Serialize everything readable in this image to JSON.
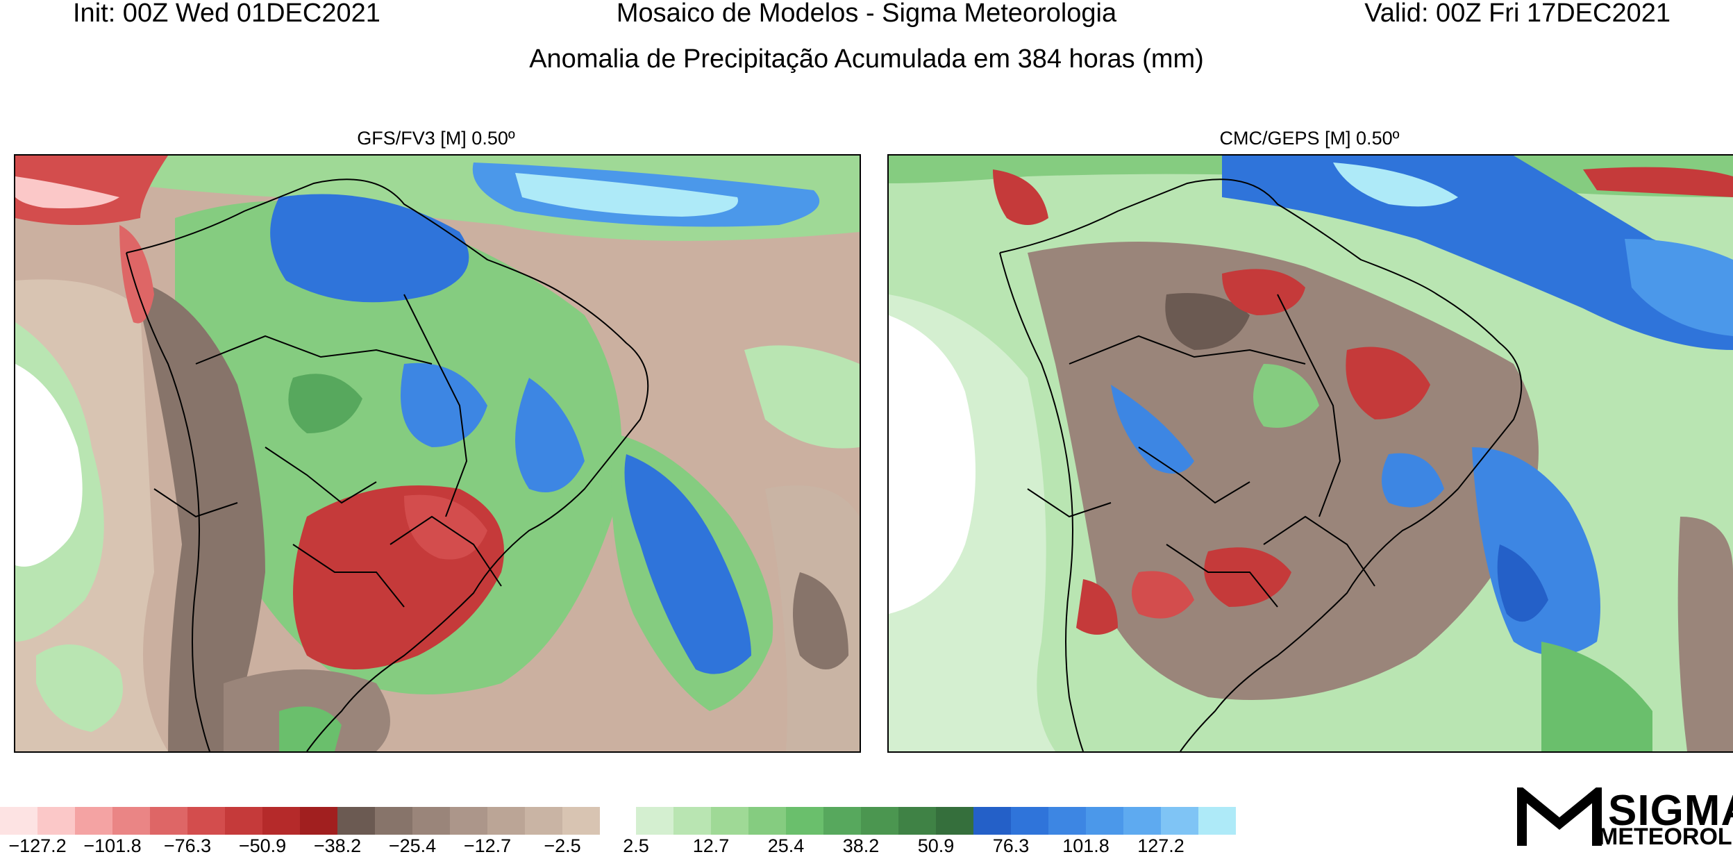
{
  "header": {
    "init": "Init: 00Z Wed 01DEC2021",
    "mosaic": "Mosaico de Modelos - Sigma Meteorologia",
    "valid": "Valid: 00Z Fri 17DEC2021",
    "subtitle": "Anomalia de Precipitação Acumulada em 384 horas (mm)"
  },
  "panels": [
    {
      "title": "GFS/FV3 [M] 0.50º"
    },
    {
      "title": "CMC/GEPS [M] 0.50º"
    }
  ],
  "colorbar": {
    "negative_colors": [
      "#fde3e3",
      "#fbc8c8",
      "#f4a3a3",
      "#ea8585",
      "#de6666",
      "#d34d4d",
      "#c53a3a",
      "#b52a2a",
      "#a11f1f",
      "#6b5a52",
      "#87746a",
      "#9a857a",
      "#ac968a",
      "#bba596",
      "#c9b4a4",
      "#d8c4b2"
    ],
    "positive_colors": [
      "#d4efd0",
      "#b9e5b2",
      "#9fd996",
      "#85cc80",
      "#6abf6c",
      "#57a85d",
      "#4b9650",
      "#3f8245",
      "#356f3c",
      "#2460c8",
      "#2f74da",
      "#3d86e3",
      "#4b98ea",
      "#5eaaf0",
      "#7fc4f5",
      "#aeeaf8"
    ],
    "negative_ticks": [
      "-127.2",
      "-101.8",
      "-76.3",
      "-50.9",
      "-38.2",
      "-25.4",
      "-12.7",
      "-2.5"
    ],
    "positive_ticks": [
      "2.5",
      "12.7",
      "25.4",
      "38.2",
      "50.9",
      "76.3",
      "101.8",
      "127.2"
    ]
  },
  "logo": {
    "line1": "SIGMA",
    "line2": "METEOROLOGIA"
  }
}
